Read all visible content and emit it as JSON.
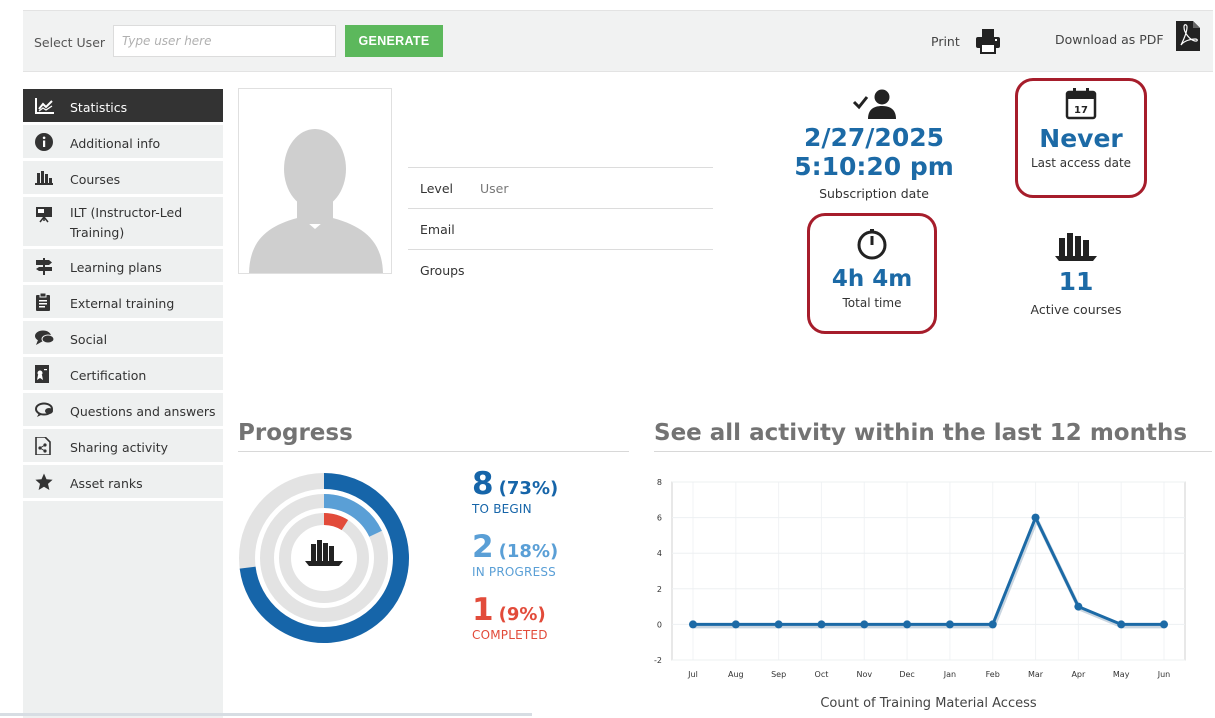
{
  "toolbar": {
    "select_user_label": "Select User",
    "user_placeholder": "Type user here",
    "generate_label": "GENERATE",
    "print_label": "Print",
    "pdf_label": "Download as PDF"
  },
  "sidebar": {
    "items": [
      {
        "label": "Statistics",
        "icon": "chart-icon"
      },
      {
        "label": "Additional info",
        "icon": "info-icon"
      },
      {
        "label": "Courses",
        "icon": "books-icon"
      },
      {
        "label": "ILT (Instructor-Led Training)",
        "icon": "presentation-icon"
      },
      {
        "label": "Learning plans",
        "icon": "signpost-icon"
      },
      {
        "label": "External training",
        "icon": "clipboard-icon"
      },
      {
        "label": "Social",
        "icon": "chat-icon"
      },
      {
        "label": "Certification",
        "icon": "certificate-icon"
      },
      {
        "label": "Questions and answers",
        "icon": "qa-icon"
      },
      {
        "label": "Sharing activity",
        "icon": "share-file-icon"
      },
      {
        "label": "Asset ranks",
        "icon": "star-icon"
      }
    ]
  },
  "details": {
    "level_label": "Level",
    "level_value": "User",
    "email_label": "Email",
    "groups_label": "Groups"
  },
  "stats": {
    "subscription_date": "2/27/2025",
    "subscription_time": "5:10:20 pm",
    "subscription_caption": "Subscription date",
    "last_access_value": "Never",
    "last_access_caption": "Last access date",
    "calendar_day": "17",
    "total_time_value": "4h 4m",
    "total_time_caption": "Total time",
    "active_courses_value": "11",
    "active_courses_caption": "Active courses"
  },
  "progress": {
    "title": "Progress",
    "to_begin": {
      "count": "8",
      "percent": "(73%)",
      "label": "TO BEGIN",
      "fraction": 0.73,
      "color": "#1665a9"
    },
    "in_progress": {
      "count": "2",
      "percent": "(18%)",
      "label": "IN PROGRESS",
      "fraction": 0.18,
      "color": "#5a9fd6"
    },
    "completed": {
      "count": "1",
      "percent": "(9%)",
      "label": "COMPLETED",
      "fraction": 0.09,
      "color": "#e24b3a"
    }
  },
  "activity": {
    "title": "See all activity within the last 12 months"
  },
  "chart_data": {
    "type": "line",
    "title": "See all activity within the last 12 months",
    "xlabel": "Count of Training Material Access",
    "ylabel": "",
    "categories": [
      "Jul",
      "Aug",
      "Sep",
      "Oct",
      "Nov",
      "Dec",
      "Jan",
      "Feb",
      "Mar",
      "Apr",
      "May",
      "Jun"
    ],
    "values": [
      0,
      0,
      0,
      0,
      0,
      0,
      0,
      0,
      6,
      1,
      0,
      0
    ],
    "ylim": [
      -2,
      8
    ],
    "yticks": [
      -2,
      0,
      2,
      4,
      6,
      8
    ],
    "color": "#1c6aa6"
  }
}
